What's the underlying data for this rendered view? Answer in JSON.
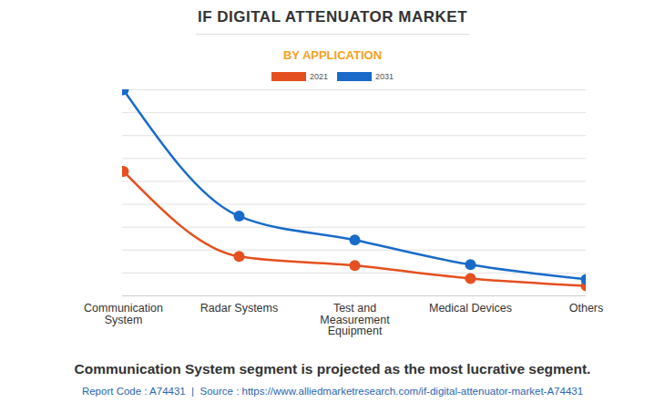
{
  "chart_data": {
    "type": "line",
    "title": "IF DIGITAL ATTENUATOR MARKET",
    "subtitle": "BY APPLICATION",
    "caption": "Communication System segment is projected as the most lucrative segment.",
    "source": "Report Code : A74431  |  Source : https://www.alliedmarketresearch.com/if-digital-attenuator-market-A74431",
    "categories": [
      "Communication System",
      "Radar Systems",
      "Test and Measurement Equipment",
      "Medical Devices",
      "Others"
    ],
    "series": [
      {
        "name": "2021",
        "color": "#e4501f",
        "values": [
          5.44,
          1.72,
          1.32,
          0.76,
          0.44
        ]
      },
      {
        "name": "2031",
        "color": "#1a6bc9",
        "values": [
          9.0,
          3.48,
          2.44,
          1.36,
          0.72
        ]
      }
    ],
    "ylim": [
      0,
      9
    ],
    "yticks": [
      0,
      1,
      2,
      3,
      4,
      5,
      6,
      7,
      8,
      9
    ],
    "grid": true,
    "tick_labels": "x",
    "marker": "circle",
    "legend": "top"
  }
}
